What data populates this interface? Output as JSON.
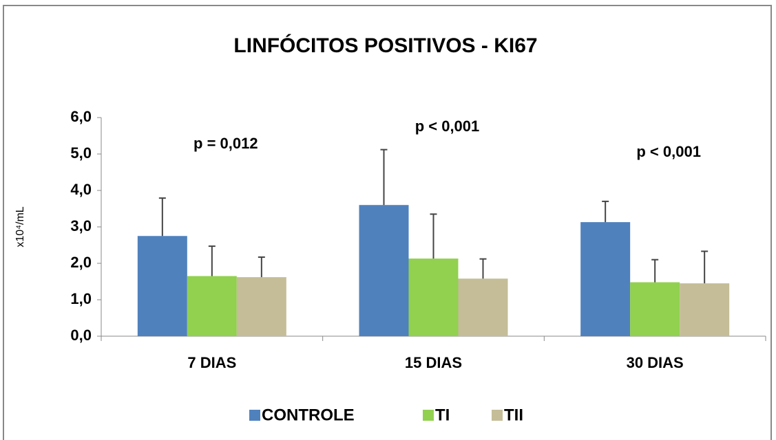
{
  "chart_data": {
    "type": "bar",
    "title": "LINFÓCITOS POSITIVOS - KI67",
    "ylabel": "x10⁴/mL",
    "categories": [
      "7 DIAS",
      "15 DIAS",
      "30 DIAS"
    ],
    "series": [
      {
        "name": "CONTROLE",
        "color": "#4f81bd",
        "values": [
          2.75,
          3.6,
          3.13
        ],
        "errors": [
          1.04,
          1.52,
          0.57
        ]
      },
      {
        "name": "TI",
        "color": "#92d050",
        "values": [
          1.65,
          2.13,
          1.48
        ],
        "errors": [
          0.82,
          1.22,
          0.62
        ]
      },
      {
        "name": "TII",
        "color": "#c4bd97",
        "values": [
          1.62,
          1.58,
          1.45
        ],
        "errors": [
          0.55,
          0.54,
          0.88
        ]
      }
    ],
    "annotations": [
      "p = 0,012",
      "p < 0,001",
      "p < 0,001"
    ],
    "ylim": [
      0,
      6
    ],
    "yticks": [
      {
        "value": 0,
        "label": "0,0"
      },
      {
        "value": 1,
        "label": "1,0"
      },
      {
        "value": 2,
        "label": "2,0"
      },
      {
        "value": 3,
        "label": "3,0"
      },
      {
        "value": 4,
        "label": "4,0"
      },
      {
        "value": 5,
        "label": "5,0"
      },
      {
        "value": 6,
        "label": "6,0"
      }
    ],
    "grid": false,
    "legend": "bottom"
  }
}
